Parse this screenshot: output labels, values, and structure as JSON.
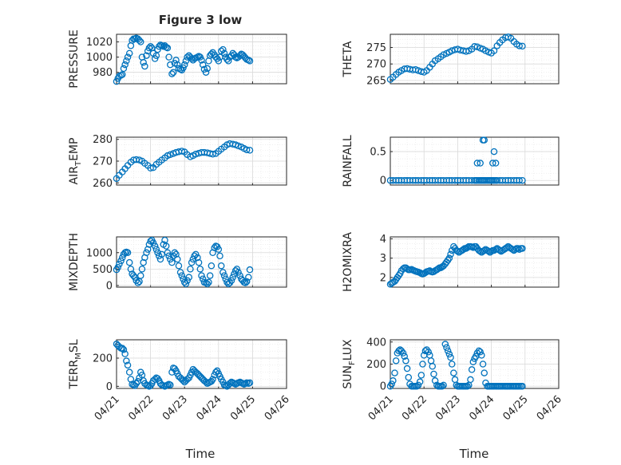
{
  "figure": {
    "title": "Figure 3 low",
    "xlabel": "Time",
    "marker_color": "#0072BD",
    "x_ticks": [
      "04/21",
      "04/22",
      "04/23",
      "04/24",
      "04/25",
      "04/26"
    ],
    "x_range": [
      "04/21",
      "04/26"
    ]
  },
  "chart_data": [
    {
      "type": "scatter",
      "ylabel": "PRESSURE",
      "ylabel_base": "PRESSURE",
      "ylabel_sub": "",
      "ylabel_rest": "",
      "ylim": [
        965,
        1030
      ],
      "yticks": [
        980,
        1000,
        1020
      ],
      "x_days": [
        0,
        0.04,
        0.08,
        0.13,
        0.17,
        0.21,
        0.25,
        0.29,
        0.33,
        0.38,
        0.42,
        0.46,
        0.5,
        0.54,
        0.58,
        0.63,
        0.67,
        0.71,
        0.75,
        0.79,
        0.83,
        0.88,
        0.92,
        0.96,
        1.0,
        1.04,
        1.08,
        1.13,
        1.17,
        1.21,
        1.25,
        1.29,
        1.33,
        1.38,
        1.42,
        1.46,
        1.5,
        1.54,
        1.58,
        1.63,
        1.67,
        1.71,
        1.75,
        1.79,
        1.83,
        1.88,
        1.92,
        1.96,
        2.0,
        2.04,
        2.08,
        2.13,
        2.17,
        2.21,
        2.25,
        2.29,
        2.33,
        2.38,
        2.42,
        2.46,
        2.5,
        2.54,
        2.58,
        2.63,
        2.67,
        2.71,
        2.75,
        2.79,
        2.83,
        2.88,
        2.92,
        2.96,
        3.0,
        3.04,
        3.08,
        3.13,
        3.17,
        3.21,
        3.25,
        3.29,
        3.33,
        3.38,
        3.42,
        3.46,
        3.5,
        3.54,
        3.58,
        3.63,
        3.67,
        3.71,
        3.75,
        3.79,
        3.83,
        3.88,
        3.92
      ],
      "y": [
        968,
        972,
        975,
        976,
        977,
        985,
        990,
        995,
        1000,
        1005,
        1015,
        1022,
        1024,
        1024,
        1025,
        1024,
        1022,
        1020,
        1000,
        993,
        988,
        1002,
        1008,
        1012,
        1014,
        1012,
        1005,
        998,
        1002,
        1010,
        1014,
        1016,
        1015,
        1014,
        1015,
        1013,
        1012,
        1000,
        990,
        978,
        980,
        992,
        996,
        990,
        985,
        984,
        983,
        986,
        990,
        995,
        1000,
        1002,
        1000,
        998,
        996,
        998,
        999,
        1000,
        1001,
        1000,
        996,
        990,
        984,
        980,
        985,
        995,
        1002,
        1004,
        1006,
        1003,
        1000,
        998,
        995,
        1000,
        1008,
        1010,
        1005,
        1000,
        997,
        995,
        1000,
        1002,
        1005,
        1003,
        1000,
        999,
        1000,
        1002,
        1004,
        1003,
        1001,
        999,
        997,
        996,
        995
      ]
    },
    {
      "type": "scatter",
      "ylabel": "THETA",
      "ylabel_base": "THETA",
      "ylabel_sub": "",
      "ylabel_rest": "",
      "ylim": [
        264,
        279
      ],
      "yticks": [
        265,
        270,
        275
      ],
      "x_days": [
        0,
        0.08,
        0.17,
        0.25,
        0.33,
        0.42,
        0.5,
        0.58,
        0.67,
        0.75,
        0.83,
        0.92,
        1.0,
        1.08,
        1.17,
        1.25,
        1.33,
        1.42,
        1.5,
        1.58,
        1.67,
        1.75,
        1.83,
        1.92,
        2.0,
        2.08,
        2.17,
        2.25,
        2.33,
        2.42,
        2.5,
        2.58,
        2.67,
        2.75,
        2.83,
        2.92,
        3.0,
        3.08,
        3.17,
        3.25,
        3.33,
        3.42,
        3.5,
        3.58,
        3.67,
        3.75,
        3.83,
        3.92
      ],
      "y": [
        265.3,
        266,
        266.8,
        267.5,
        268,
        268.5,
        268.6,
        268.4,
        268.2,
        268.3,
        268,
        267.7,
        267.5,
        268,
        269,
        270,
        271,
        271.6,
        272.2,
        272.8,
        273.2,
        273.6,
        274,
        274.3,
        274.5,
        274.2,
        274,
        273.8,
        274,
        274.5,
        275.3,
        275.2,
        274.8,
        274.5,
        274,
        273.6,
        273.3,
        274,
        275.5,
        276.5,
        277.3,
        278,
        278.2,
        277.8,
        276.8,
        276,
        275.5,
        275.4
      ]
    },
    {
      "type": "scatter",
      "ylabel": "AIR_TEMP",
      "ylabel_base": "AIR",
      "ylabel_sub": "T",
      "ylabel_rest": "EMP",
      "ylim": [
        259,
        281
      ],
      "yticks": [
        260,
        270,
        280
      ],
      "x_days": [
        0,
        0.08,
        0.17,
        0.25,
        0.33,
        0.42,
        0.5,
        0.58,
        0.67,
        0.75,
        0.83,
        0.92,
        1.0,
        1.08,
        1.17,
        1.25,
        1.33,
        1.42,
        1.5,
        1.58,
        1.67,
        1.75,
        1.83,
        1.92,
        2.0,
        2.08,
        2.17,
        2.25,
        2.33,
        2.42,
        2.5,
        2.58,
        2.67,
        2.75,
        2.83,
        2.92,
        3.0,
        3.08,
        3.17,
        3.25,
        3.33,
        3.42,
        3.5,
        3.58,
        3.67,
        3.75,
        3.83,
        3.92
      ],
      "y": [
        262,
        263.5,
        265,
        266.5,
        268,
        269.5,
        270.5,
        270.7,
        270.5,
        270,
        269,
        268,
        266.8,
        267,
        268.5,
        269.5,
        270.5,
        271.5,
        272.5,
        273,
        273.5,
        274,
        274.3,
        274.6,
        274.2,
        273,
        272,
        272.5,
        273.2,
        273.6,
        274,
        274,
        273.8,
        273.5,
        273.2,
        273.5,
        274.5,
        275.5,
        276.5,
        277.5,
        278,
        277.8,
        277.5,
        277,
        276.5,
        275.8,
        275.2,
        275
      ]
    },
    {
      "type": "scatter",
      "ylabel": "RAINFALL",
      "ylabel_base": "RAINFALL",
      "ylabel_sub": "",
      "ylabel_rest": "",
      "ylim": [
        -0.08,
        0.75
      ],
      "yticks": [
        0,
        0.5
      ],
      "ytick_labels": [
        "0",
        "0.5"
      ],
      "x_days": [
        0,
        0.08,
        0.17,
        0.25,
        0.33,
        0.42,
        0.5,
        0.58,
        0.67,
        0.75,
        0.83,
        0.92,
        1.0,
        1.08,
        1.17,
        1.25,
        1.33,
        1.42,
        1.5,
        1.58,
        1.67,
        1.75,
        1.83,
        1.92,
        2.0,
        2.08,
        2.17,
        2.25,
        2.33,
        2.42,
        2.5,
        2.54,
        2.58,
        2.63,
        2.67,
        2.71,
        2.75,
        2.79,
        2.83,
        2.88,
        2.92,
        2.96,
        3.0,
        3.04,
        3.08,
        3.13,
        3.17,
        3.25,
        3.33,
        3.42,
        3.5,
        3.58,
        3.67,
        3.75,
        3.83,
        3.92,
        2.58,
        2.67,
        2.75,
        2.79,
        3.04,
        3.08,
        3.13
      ],
      "y": [
        0,
        0,
        0,
        0,
        0,
        0,
        0,
        0,
        0,
        0,
        0,
        0,
        0,
        0,
        0,
        0,
        0,
        0,
        0,
        0,
        0,
        0,
        0,
        0,
        0,
        0,
        0,
        0,
        0,
        0,
        0,
        0,
        0,
        0,
        0,
        0,
        0,
        0,
        0,
        0,
        0,
        0,
        0,
        0,
        0,
        0,
        0,
        0,
        0,
        0,
        0,
        0,
        0,
        0,
        0,
        0,
        0.3,
        0.3,
        0.7,
        0.7,
        0.3,
        0.5,
        0.3
      ]
    },
    {
      "type": "scatter",
      "ylabel": "MIXDEPTH",
      "ylabel_base": "MIXDEPTH",
      "ylabel_sub": "",
      "ylabel_rest": "",
      "ylim": [
        -50,
        1480
      ],
      "yticks": [
        0,
        500,
        1000
      ],
      "x_days": [
        0,
        0.04,
        0.08,
        0.13,
        0.17,
        0.21,
        0.25,
        0.29,
        0.33,
        0.38,
        0.42,
        0.46,
        0.5,
        0.54,
        0.58,
        0.63,
        0.67,
        0.71,
        0.75,
        0.79,
        0.83,
        0.88,
        0.92,
        0.96,
        1.0,
        1.04,
        1.08,
        1.13,
        1.17,
        1.21,
        1.25,
        1.29,
        1.33,
        1.38,
        1.42,
        1.46,
        1.5,
        1.54,
        1.58,
        1.63,
        1.67,
        1.71,
        1.75,
        1.79,
        1.83,
        1.88,
        1.92,
        1.96,
        2.0,
        2.04,
        2.08,
        2.13,
        2.17,
        2.21,
        2.25,
        2.29,
        2.33,
        2.38,
        2.42,
        2.46,
        2.5,
        2.54,
        2.58,
        2.63,
        2.67,
        2.71,
        2.75,
        2.79,
        2.83,
        2.88,
        2.92,
        2.96,
        3.0,
        3.04,
        3.08,
        3.13,
        3.17,
        3.21,
        3.25,
        3.29,
        3.33,
        3.38,
        3.42,
        3.46,
        3.5,
        3.54,
        3.58,
        3.63,
        3.67,
        3.71,
        3.75,
        3.79,
        3.83,
        3.88,
        3.92
      ],
      "y": [
        480,
        550,
        650,
        750,
        850,
        950,
        1000,
        1020,
        1000,
        700,
        500,
        350,
        300,
        250,
        150,
        80,
        120,
        300,
        500,
        700,
        850,
        1000,
        1100,
        1250,
        1350,
        1380,
        1300,
        1200,
        1100,
        1000,
        900,
        800,
        950,
        1250,
        1380,
        1200,
        1000,
        900,
        800,
        700,
        900,
        1000,
        950,
        800,
        600,
        400,
        300,
        200,
        100,
        50,
        150,
        250,
        500,
        700,
        800,
        900,
        950,
        850,
        700,
        500,
        300,
        200,
        100,
        80,
        50,
        100,
        300,
        600,
        1000,
        1150,
        1200,
        1180,
        1100,
        900,
        600,
        400,
        300,
        200,
        100,
        50,
        80,
        150,
        250,
        350,
        450,
        500,
        400,
        300,
        200,
        150,
        100,
        80,
        120,
        250,
        480
      ]
    },
    {
      "type": "scatter",
      "ylabel": "H2OMIXRA",
      "ylabel_base": "H2OMIXRA",
      "ylabel_sub": "",
      "ylabel_rest": "",
      "ylim": [
        1.5,
        4.1
      ],
      "yticks": [
        2,
        3,
        4
      ],
      "x_days": [
        0,
        0.04,
        0.08,
        0.13,
        0.17,
        0.21,
        0.25,
        0.29,
        0.33,
        0.38,
        0.42,
        0.46,
        0.5,
        0.54,
        0.58,
        0.63,
        0.67,
        0.71,
        0.75,
        0.79,
        0.83,
        0.88,
        0.92,
        0.96,
        1.0,
        1.04,
        1.08,
        1.13,
        1.17,
        1.21,
        1.25,
        1.29,
        1.33,
        1.38,
        1.42,
        1.46,
        1.5,
        1.54,
        1.58,
        1.63,
        1.67,
        1.71,
        1.75,
        1.79,
        1.83,
        1.88,
        1.92,
        1.96,
        2.0,
        2.04,
        2.08,
        2.13,
        2.17,
        2.21,
        2.25,
        2.29,
        2.33,
        2.38,
        2.42,
        2.46,
        2.5,
        2.54,
        2.58,
        2.63,
        2.67,
        2.71,
        2.75,
        2.79,
        2.83,
        2.88,
        2.92,
        2.96,
        3.0,
        3.04,
        3.08,
        3.13,
        3.17,
        3.21,
        3.25,
        3.29,
        3.33,
        3.38,
        3.42,
        3.46,
        3.5,
        3.54,
        3.58,
        3.63,
        3.67,
        3.71,
        3.75,
        3.79,
        3.83,
        3.88,
        3.92
      ],
      "y": [
        1.65,
        1.7,
        1.75,
        1.8,
        1.9,
        2.0,
        2.1,
        2.2,
        2.35,
        2.45,
        2.5,
        2.5,
        2.45,
        2.4,
        2.4,
        2.42,
        2.38,
        2.35,
        2.32,
        2.3,
        2.28,
        2.25,
        2.2,
        2.18,
        2.2,
        2.25,
        2.3,
        2.32,
        2.35,
        2.3,
        2.28,
        2.3,
        2.35,
        2.4,
        2.45,
        2.5,
        2.5,
        2.55,
        2.6,
        2.7,
        2.8,
        2.9,
        3.0,
        3.2,
        3.4,
        3.6,
        3.5,
        3.4,
        3.35,
        3.3,
        3.35,
        3.4,
        3.45,
        3.5,
        3.5,
        3.55,
        3.6,
        3.6,
        3.58,
        3.55,
        3.6,
        3.6,
        3.5,
        3.4,
        3.35,
        3.3,
        3.35,
        3.4,
        3.45,
        3.4,
        3.35,
        3.3,
        3.35,
        3.4,
        3.4,
        3.45,
        3.5,
        3.45,
        3.4,
        3.35,
        3.4,
        3.45,
        3.5,
        3.55,
        3.6,
        3.55,
        3.5,
        3.45,
        3.4,
        3.45,
        3.5,
        3.5,
        3.45,
        3.5,
        3.5
      ]
    },
    {
      "type": "scatter",
      "ylabel": "TERR_MSL",
      "ylabel_base": "TERR",
      "ylabel_sub": "M",
      "ylabel_rest": "SL",
      "ylim": [
        -15,
        330
      ],
      "yticks": [
        0,
        200
      ],
      "x_days": [
        0,
        0.04,
        0.08,
        0.13,
        0.17,
        0.21,
        0.25,
        0.29,
        0.33,
        0.38,
        0.42,
        0.46,
        0.5,
        0.54,
        0.58,
        0.63,
        0.67,
        0.71,
        0.75,
        0.79,
        0.83,
        0.88,
        0.92,
        0.96,
        1.0,
        1.04,
        1.08,
        1.13,
        1.17,
        1.21,
        1.25,
        1.29,
        1.33,
        1.38,
        1.42,
        1.46,
        1.5,
        1.54,
        1.58,
        1.63,
        1.67,
        1.71,
        1.75,
        1.79,
        1.83,
        1.88,
        1.92,
        1.96,
        2.0,
        2.04,
        2.08,
        2.13,
        2.17,
        2.21,
        2.25,
        2.29,
        2.33,
        2.38,
        2.42,
        2.46,
        2.5,
        2.54,
        2.58,
        2.63,
        2.67,
        2.71,
        2.75,
        2.79,
        2.83,
        2.88,
        2.92,
        2.96,
        3.0,
        3.04,
        3.08,
        3.13,
        3.17,
        3.21,
        3.25,
        3.29,
        3.33,
        3.38,
        3.42,
        3.46,
        3.5,
        3.54,
        3.58,
        3.63,
        3.67,
        3.71,
        3.75,
        3.79,
        3.83,
        3.88,
        3.92
      ],
      "y": [
        300,
        290,
        280,
        270,
        270,
        260,
        230,
        180,
        150,
        100,
        50,
        15,
        10,
        5,
        20,
        35,
        60,
        100,
        80,
        40,
        20,
        10,
        5,
        0,
        5,
        20,
        40,
        50,
        60,
        55,
        40,
        20,
        10,
        5,
        0,
        5,
        10,
        15,
        10,
        100,
        130,
        125,
        110,
        90,
        70,
        60,
        50,
        40,
        30,
        40,
        50,
        60,
        80,
        100,
        120,
        110,
        100,
        90,
        80,
        70,
        60,
        50,
        40,
        30,
        20,
        25,
        30,
        35,
        50,
        80,
        100,
        110,
        90,
        70,
        50,
        30,
        10,
        5,
        0,
        10,
        20,
        30,
        25,
        20,
        15,
        20,
        25,
        30,
        25,
        20,
        15,
        20,
        25,
        20,
        25
      ]
    },
    {
      "type": "scatter",
      "ylabel": "SUN_FLUX",
      "ylabel_base": "SUN",
      "ylabel_sub": "F",
      "ylabel_rest": "LUX",
      "ylim": [
        -20,
        420
      ],
      "yticks": [
        0,
        200,
        400
      ],
      "x_days": [
        0,
        0.04,
        0.08,
        0.13,
        0.17,
        0.21,
        0.25,
        0.29,
        0.33,
        0.38,
        0.42,
        0.46,
        0.5,
        0.54,
        0.58,
        0.63,
        0.67,
        0.71,
        0.75,
        0.79,
        0.83,
        0.88,
        0.92,
        0.96,
        1.0,
        1.04,
        1.08,
        1.13,
        1.17,
        1.21,
        1.25,
        1.29,
        1.33,
        1.38,
        1.42,
        1.46,
        1.5,
        1.54,
        1.58,
        1.63,
        1.67,
        1.71,
        1.75,
        1.79,
        1.83,
        1.88,
        1.92,
        1.96,
        2.0,
        2.04,
        2.08,
        2.13,
        2.17,
        2.21,
        2.25,
        2.29,
        2.33,
        2.38,
        2.42,
        2.46,
        2.5,
        2.54,
        2.58,
        2.63,
        2.67,
        2.71,
        2.75,
        2.79,
        2.83,
        2.88,
        2.92,
        2.96,
        3.0,
        3.04,
        3.08,
        3.13,
        3.17,
        3.21,
        3.25,
        3.29,
        3.33,
        3.38,
        3.42,
        3.46,
        3.5,
        3.54,
        3.58,
        3.63,
        3.67,
        3.71,
        3.75,
        3.79,
        3.83,
        3.88,
        3.92
      ],
      "y": [
        0,
        20,
        50,
        120,
        230,
        300,
        320,
        330,
        320,
        300,
        270,
        230,
        160,
        80,
        20,
        0,
        0,
        0,
        0,
        0,
        10,
        40,
        100,
        200,
        280,
        320,
        330,
        310,
        280,
        230,
        180,
        110,
        50,
        10,
        0,
        0,
        0,
        0,
        10,
        380,
        350,
        320,
        290,
        260,
        200,
        120,
        60,
        10,
        0,
        0,
        0,
        0,
        0,
        0,
        0,
        0,
        10,
        60,
        150,
        220,
        250,
        270,
        300,
        320,
        310,
        280,
        200,
        120,
        30,
        0,
        0,
        0,
        0,
        0,
        0,
        0,
        0,
        0,
        0,
        0,
        0,
        0,
        0,
        0,
        0,
        0,
        0,
        0,
        0,
        0,
        0,
        0,
        0,
        0,
        0
      ]
    }
  ]
}
